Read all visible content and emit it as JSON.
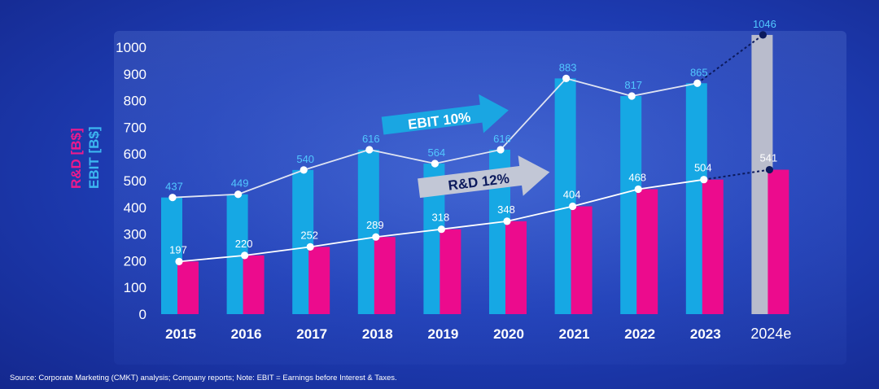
{
  "chart_data": {
    "type": "bar",
    "categories": [
      "2015",
      "2016",
      "2017",
      "2018",
      "2019",
      "2020",
      "2021",
      "2022",
      "2023",
      "2024e"
    ],
    "series": [
      {
        "name": "EBIT [B$]",
        "values": [
          437,
          449,
          540,
          616,
          564,
          616,
          883,
          817,
          865,
          1046
        ],
        "color": "#16a8e4"
      },
      {
        "name": "R&D [B$]",
        "values": [
          197,
          220,
          252,
          289,
          318,
          348,
          404,
          468,
          504,
          541
        ],
        "color": "#ec0b8d"
      }
    ],
    "estimate_bar_color": "#b9bccc",
    "ylim": [
      0,
      1000
    ],
    "yticks": [
      "0",
      "100",
      "200",
      "300",
      "400",
      "500",
      "600",
      "700",
      "800",
      "900",
      "1000"
    ],
    "ylabel_rd": "R&D [B$]",
    "ylabel_ebit": "EBIT [B$]",
    "annotations": [
      {
        "text": "EBIT 10%",
        "color": "#1aa6e2"
      },
      {
        "text": "R&D 12%",
        "color": "#c2c7d6"
      }
    ],
    "grid": false
  },
  "source": "Source: Corporate Marketing (CMKT) analysis; Company reports; Note: EBIT = Earnings before Interest & Taxes."
}
